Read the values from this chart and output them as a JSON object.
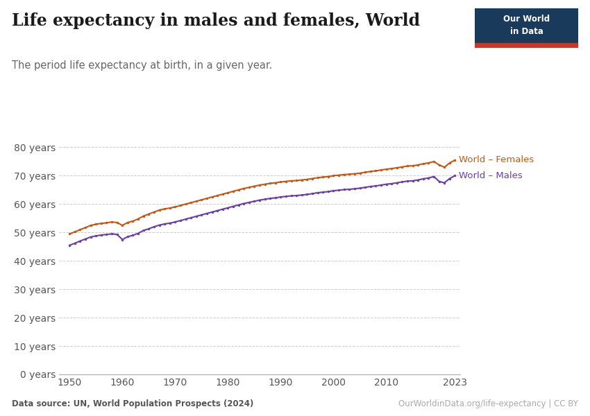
{
  "title": "Life expectancy in males and females, World",
  "subtitle": "The period life expectancy at birth, in a given year.",
  "datasource": "Data source: UN, World Population Prospects (2024)",
  "url": "OurWorldinData.org/life-expectancy | CC BY",
  "female_color": "#C05917",
  "male_color": "#6B3FA0",
  "female_label": "World – Females",
  "male_label": "World – Males",
  "years": [
    1950,
    1951,
    1952,
    1953,
    1954,
    1955,
    1956,
    1957,
    1958,
    1959,
    1960,
    1961,
    1962,
    1963,
    1964,
    1965,
    1966,
    1967,
    1968,
    1969,
    1970,
    1971,
    1972,
    1973,
    1974,
    1975,
    1976,
    1977,
    1978,
    1979,
    1980,
    1981,
    1982,
    1983,
    1984,
    1985,
    1986,
    1987,
    1988,
    1989,
    1990,
    1991,
    1992,
    1993,
    1994,
    1995,
    1996,
    1997,
    1998,
    1999,
    2000,
    2001,
    2002,
    2003,
    2004,
    2005,
    2006,
    2007,
    2008,
    2009,
    2010,
    2011,
    2012,
    2013,
    2014,
    2015,
    2016,
    2017,
    2018,
    2019,
    2020,
    2021,
    2022,
    2023
  ],
  "females": [
    49.5,
    50.2,
    51.0,
    51.7,
    52.5,
    52.9,
    53.2,
    53.4,
    53.7,
    53.5,
    52.5,
    53.5,
    54.0,
    54.8,
    55.8,
    56.5,
    57.2,
    57.9,
    58.3,
    58.6,
    59.0,
    59.5,
    60.0,
    60.5,
    61.0,
    61.5,
    62.0,
    62.5,
    63.0,
    63.5,
    64.0,
    64.5,
    65.0,
    65.5,
    65.9,
    66.3,
    66.7,
    67.0,
    67.3,
    67.5,
    67.8,
    68.0,
    68.2,
    68.3,
    68.5,
    68.7,
    69.0,
    69.3,
    69.5,
    69.7,
    70.0,
    70.2,
    70.4,
    70.5,
    70.7,
    70.9,
    71.2,
    71.5,
    71.7,
    72.0,
    72.3,
    72.5,
    72.8,
    73.1,
    73.4,
    73.5,
    73.8,
    74.2,
    74.5,
    75.0,
    73.8,
    73.0,
    74.5,
    75.5
  ],
  "males": [
    45.5,
    46.2,
    47.0,
    47.7,
    48.4,
    48.8,
    49.1,
    49.3,
    49.5,
    49.3,
    47.5,
    48.5,
    49.0,
    49.7,
    50.7,
    51.3,
    52.0,
    52.6,
    53.0,
    53.3,
    53.7,
    54.2,
    54.7,
    55.2,
    55.7,
    56.2,
    56.7,
    57.2,
    57.7,
    58.2,
    58.7,
    59.2,
    59.7,
    60.2,
    60.6,
    61.0,
    61.4,
    61.7,
    62.0,
    62.2,
    62.5,
    62.7,
    62.9,
    63.0,
    63.2,
    63.4,
    63.7,
    64.0,
    64.2,
    64.4,
    64.7,
    64.9,
    65.1,
    65.2,
    65.4,
    65.6,
    65.9,
    66.2,
    66.4,
    66.7,
    67.0,
    67.2,
    67.5,
    67.8,
    68.1,
    68.2,
    68.5,
    68.9,
    69.2,
    69.7,
    68.0,
    67.5,
    69.0,
    70.0
  ],
  "xlim": [
    1948,
    2024
  ],
  "ylim": [
    0,
    85
  ],
  "yticks": [
    0,
    10,
    20,
    30,
    40,
    50,
    60,
    70,
    80
  ],
  "xticks": [
    1950,
    1960,
    1970,
    1980,
    1990,
    2000,
    2010,
    2023
  ],
  "background_color": "#ffffff",
  "grid_color": "#cccccc",
  "logo_bg": "#1a3a5c",
  "logo_red": "#c0392b"
}
